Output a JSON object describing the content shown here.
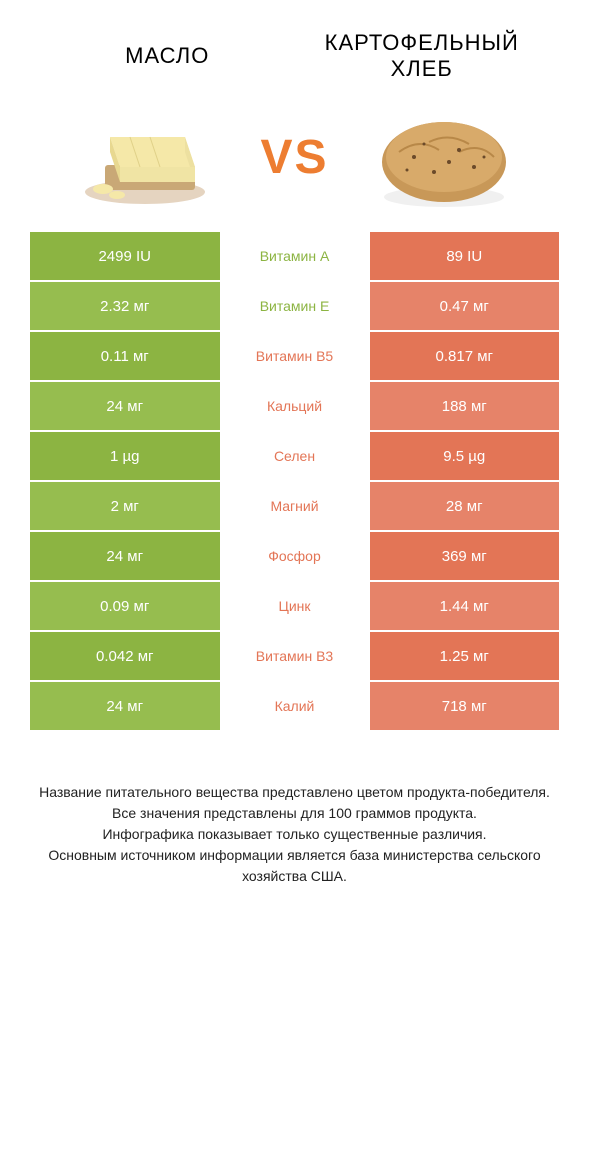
{
  "header": {
    "left_title": "МАСЛО",
    "right_title": "КАРТОФЕЛЬНЫЙ ХЛЕБ",
    "vs": "VS"
  },
  "colors": {
    "left": "#8cb442",
    "right": "#e37556",
    "left_nutrient": "#8cb442",
    "right_nutrient": "#e37556",
    "left_alt": "#96bd4f",
    "right_alt": "#e68369"
  },
  "rows": [
    {
      "left": "2499 IU",
      "nutrient": "Витамин A",
      "right": "89 IU",
      "winner": "left"
    },
    {
      "left": "2.32 мг",
      "nutrient": "Витамин E",
      "right": "0.47 мг",
      "winner": "left"
    },
    {
      "left": "0.11 мг",
      "nutrient": "Витамин B5",
      "right": "0.817 мг",
      "winner": "right"
    },
    {
      "left": "24 мг",
      "nutrient": "Кальций",
      "right": "188 мг",
      "winner": "right"
    },
    {
      "left": "1 µg",
      "nutrient": "Селен",
      "right": "9.5 µg",
      "winner": "right"
    },
    {
      "left": "2 мг",
      "nutrient": "Магний",
      "right": "28 мг",
      "winner": "right"
    },
    {
      "left": "24 мг",
      "nutrient": "Фосфор",
      "right": "369 мг",
      "winner": "right"
    },
    {
      "left": "0.09 мг",
      "nutrient": "Цинк",
      "right": "1.44 мг",
      "winner": "right"
    },
    {
      "left": "0.042 мг",
      "nutrient": "Витамин B3",
      "right": "1.25 мг",
      "winner": "right"
    },
    {
      "left": "24 мг",
      "nutrient": "Калий",
      "right": "718 мг",
      "winner": "right"
    }
  ],
  "footnotes": [
    "Название питательного вещества представлено цветом продукта-победителя.",
    "Все значения представлены для 100 граммов продукта.",
    "Инфографика показывает только существенные различия.",
    "Основным источником информации является база министерства сельского хозяйства США."
  ]
}
